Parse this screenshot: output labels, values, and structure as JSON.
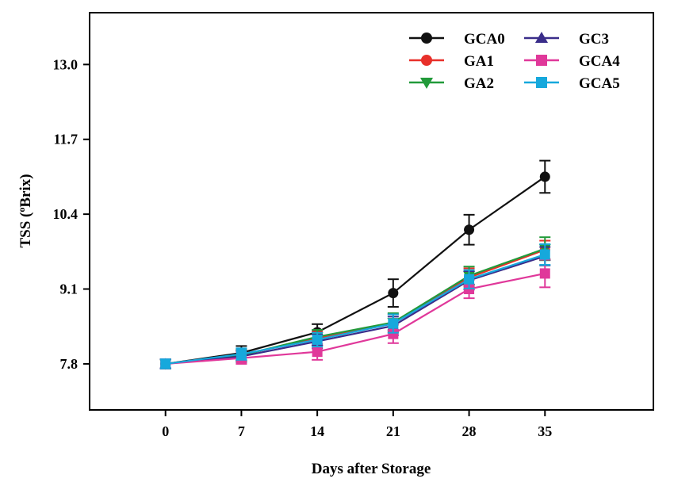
{
  "chart_data": {
    "type": "line",
    "title": "",
    "xlabel": "Days after Storage",
    "ylabel": "TSS (°Brix)",
    "ylabel_parts": {
      "prefix": "TSS (",
      "superscript": "o",
      "suffix": "Brix)"
    },
    "x": [
      0,
      7,
      14,
      21,
      28,
      35
    ],
    "x_tick_labels": [
      "0",
      "7",
      "14",
      "21",
      "28",
      "35"
    ],
    "xlim": [
      -7,
      45
    ],
    "y_ticks": [
      7.8,
      9.1,
      10.4,
      11.7,
      13.0
    ],
    "y_tick_labels": [
      "7.8",
      "9.1",
      "10.4",
      "11.7",
      "13.0"
    ],
    "ylim": [
      7.0,
      13.9
    ],
    "grid": false,
    "legend_position": "top-right",
    "series": [
      {
        "name": "GCA0",
        "color": "#111111",
        "marker": "circle",
        "values": [
          7.8,
          7.99,
          8.35,
          9.03,
          10.13,
          11.05
        ],
        "errors": [
          0.08,
          0.12,
          0.14,
          0.24,
          0.26,
          0.28
        ]
      },
      {
        "name": "GA1",
        "color": "#e8302a",
        "marker": "circle",
        "values": [
          7.8,
          7.96,
          8.24,
          8.5,
          9.3,
          9.78
        ],
        "errors": [
          0.08,
          0.1,
          0.12,
          0.16,
          0.16,
          0.16
        ]
      },
      {
        "name": "GA2",
        "color": "#229a3a",
        "marker": "triangle-down",
        "values": [
          7.8,
          7.95,
          8.27,
          8.52,
          9.33,
          9.8
        ],
        "errors": [
          0.08,
          0.1,
          0.12,
          0.16,
          0.16,
          0.2
        ]
      },
      {
        "name": "GC3",
        "color": "#3a2d8a",
        "marker": "triangle-up",
        "values": [
          7.8,
          7.93,
          8.19,
          8.46,
          9.25,
          9.67
        ],
        "errors": [
          0.08,
          0.1,
          0.12,
          0.16,
          0.16,
          0.16
        ]
      },
      {
        "name": "GCA4",
        "color": "#e0389a",
        "marker": "square",
        "values": [
          7.8,
          7.9,
          8.01,
          8.32,
          9.1,
          9.37
        ],
        "errors": [
          0.08,
          0.1,
          0.14,
          0.16,
          0.16,
          0.24
        ]
      },
      {
        "name": "GCA5",
        "color": "#16a8dc",
        "marker": "square",
        "values": [
          7.8,
          7.97,
          8.22,
          8.5,
          9.27,
          9.7
        ],
        "errors": [
          0.08,
          0.1,
          0.12,
          0.16,
          0.16,
          0.18
        ]
      }
    ]
  }
}
